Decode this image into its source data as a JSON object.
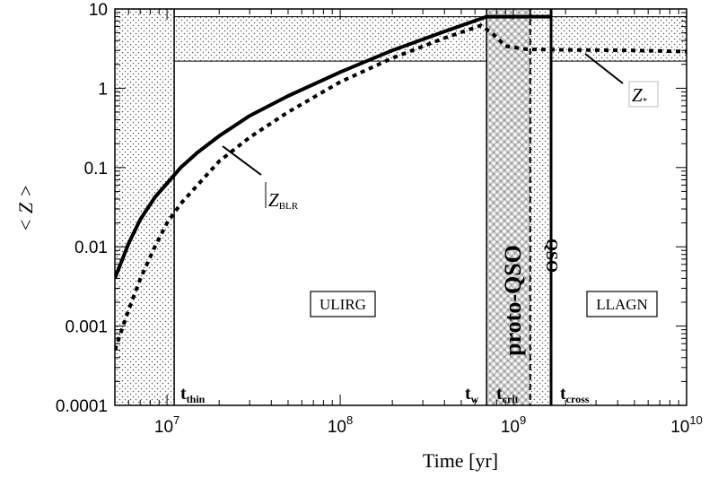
{
  "chart_data": {
    "type": "line",
    "xlabel": "Time [yr]",
    "ylabel": "< Z >",
    "x_scale": "log",
    "y_scale": "log",
    "xlim": [
      5000000,
      10000000000
    ],
    "ylim": [
      0.0001,
      10
    ],
    "x_ticks": [
      {
        "value": 10000000,
        "base": "10",
        "exp": "7"
      },
      {
        "value": 100000000,
        "base": "10",
        "exp": "8"
      },
      {
        "value": 1000000000,
        "base": "10",
        "exp": "9"
      },
      {
        "value": 10000000000,
        "base": "10",
        "exp": "10"
      }
    ],
    "y_ticks": [
      {
        "value": 10,
        "label": "10"
      },
      {
        "value": 1,
        "label": "1"
      },
      {
        "value": 0.1,
        "label": "0.1"
      },
      {
        "value": 0.01,
        "label": "0.01"
      },
      {
        "value": 0.001,
        "label": "0.001"
      },
      {
        "value": 0.0001,
        "label": "0.0001"
      }
    ],
    "series": [
      {
        "name": "Z_BLR",
        "label_main": "Z",
        "label_sub": "BLR",
        "style": "solid",
        "x": [
          5000000,
          6000000,
          7000000,
          8500000,
          10000000,
          12000000,
          15000000,
          20000000,
          30000000,
          50000000,
          100000000,
          200000000,
          400000000,
          700000000,
          1000000000,
          1300000000,
          1650000000
        ],
        "y": [
          0.004,
          0.011,
          0.022,
          0.042,
          0.063,
          0.1,
          0.155,
          0.25,
          0.45,
          0.8,
          1.6,
          3.0,
          5.2,
          8.0,
          8.0,
          8.0,
          8.0
        ]
      },
      {
        "name": "Z_*",
        "label_main": "Z",
        "label_sub": "*",
        "style": "dotted",
        "x": [
          5000000,
          6000000,
          7000000,
          8500000,
          10000000,
          12000000,
          15000000,
          20000000,
          30000000,
          50000000,
          100000000,
          200000000,
          400000000,
          650000000,
          750000000,
          900000000,
          1200000000,
          2000000000,
          5000000000,
          10000000000
        ],
        "y": [
          0.0005,
          0.0016,
          0.0039,
          0.01,
          0.02,
          0.035,
          0.06,
          0.12,
          0.24,
          0.5,
          1.2,
          2.4,
          4.3,
          6.2,
          5.0,
          3.4,
          3.1,
          3.05,
          3.0,
          2.9
        ]
      }
    ],
    "annotations": {
      "t_thin": {
        "main": "t",
        "sub": "thin"
      },
      "t_w": {
        "main": "t",
        "sub": "w"
      },
      "t_crit": {
        "main": "t",
        "sub": "crit"
      },
      "t_cross": {
        "main": "t",
        "sub": "cross"
      },
      "ulirg": "ULIRG",
      "llagn": "LLAGN",
      "proto_qso": "proto-QSO",
      "qso": "QSO"
    },
    "regions": {
      "t_thin_x": 11000000,
      "t_w_x": 700000000,
      "t_crit_x": 1250000000,
      "t_cross_x": 1650000000,
      "upper_band_y": [
        2.2,
        8.0
      ]
    },
    "grid": false
  }
}
